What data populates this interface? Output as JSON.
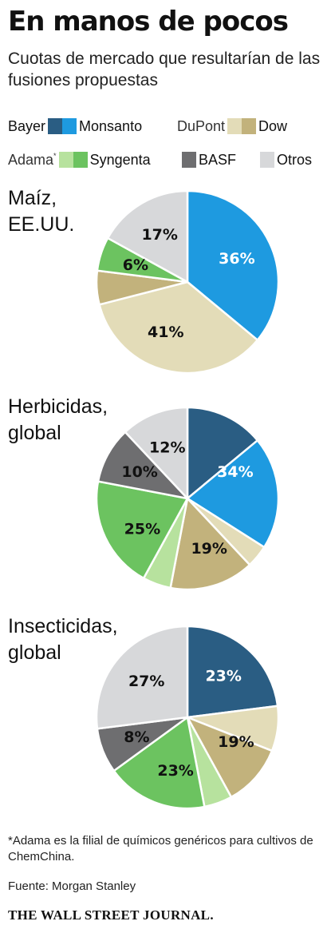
{
  "header": {
    "title": "En manos de pocos",
    "subtitle": "Cuotas de mercado que resultarían de las fusiones propuestas"
  },
  "legend": {
    "row1": [
      {
        "pre": "Bayer",
        "label": "Monsanto",
        "pre_color": "#2a5d83",
        "color": "#1e9ae0"
      },
      {
        "pre": "DuPont",
        "label": "Dow",
        "pre_color": "#e3dcb8",
        "color": "#c2b27c"
      }
    ],
    "row2": [
      {
        "pre": "Adama",
        "pre_mark": "*",
        "label": "Syngenta",
        "pre_color": "#b7e29e",
        "color": "#6cc360"
      },
      {
        "label": "BASF",
        "color": "#6e6e70"
      },
      {
        "label": "Otros",
        "color": "#d7d8da"
      }
    ]
  },
  "chart_data": [
    {
      "type": "pie",
      "title": "Maíz, EE.UU.",
      "title_lines": [
        "Maíz,",
        "EE.UU."
      ],
      "slices": [
        {
          "value": 36,
          "label": "36%",
          "color": "#1e9ae0",
          "label_color": "#ffffff"
        },
        {
          "value": 35,
          "color": "#e3dcb8"
        },
        {
          "value": 6,
          "color": "#c2b27c"
        },
        {
          "value": 6,
          "label": "6%",
          "color": "#6cc360",
          "label_color": "#111111"
        },
        {
          "value": 17,
          "label": "17%",
          "color": "#d7d8da",
          "label_color": "#111111"
        }
      ],
      "group_labels": [
        {
          "text": "41%",
          "slices": [
            1,
            2
          ],
          "color": "#111111"
        }
      ]
    },
    {
      "type": "pie",
      "title": "Herbicidas, global",
      "title_lines": [
        "Herbicidas,",
        "global"
      ],
      "slices": [
        {
          "value": 14,
          "color": "#2a5d83"
        },
        {
          "value": 20,
          "color": "#1e9ae0"
        },
        {
          "value": 4,
          "color": "#e3dcb8"
        },
        {
          "value": 15,
          "color": "#c2b27c"
        },
        {
          "value": 5,
          "color": "#b7e29e"
        },
        {
          "value": 20,
          "color": "#6cc360"
        },
        {
          "value": 10,
          "label": "10%",
          "color": "#6e6e70",
          "label_color": "#111111"
        },
        {
          "value": 12,
          "label": "12%",
          "color": "#d7d8da",
          "label_color": "#111111"
        }
      ],
      "group_labels": [
        {
          "text": "34%",
          "slices": [
            0,
            1
          ],
          "color": "#ffffff"
        },
        {
          "text": "19%",
          "slices": [
            2,
            3
          ],
          "color": "#111111"
        },
        {
          "text": "25%",
          "slices": [
            4,
            5
          ],
          "color": "#111111"
        }
      ]
    },
    {
      "type": "pie",
      "title": "Insecticidas, global",
      "title_lines": [
        "Insecticidas,",
        "global"
      ],
      "slices": [
        {
          "value": 23,
          "label": "23%",
          "color": "#2a5d83",
          "label_color": "#ffffff"
        },
        {
          "value": 8,
          "color": "#e3dcb8"
        },
        {
          "value": 11,
          "color": "#c2b27c"
        },
        {
          "value": 5,
          "color": "#b7e29e"
        },
        {
          "value": 18,
          "color": "#6cc360"
        },
        {
          "value": 8,
          "label": "8%",
          "color": "#6e6e70",
          "label_color": "#111111"
        },
        {
          "value": 27,
          "label": "27%",
          "color": "#d7d8da",
          "label_color": "#111111"
        }
      ],
      "group_labels": [
        {
          "text": "19%",
          "slices": [
            1,
            2
          ],
          "color": "#111111"
        },
        {
          "text": "23%",
          "slices": [
            3,
            4
          ],
          "color": "#111111"
        }
      ]
    }
  ],
  "footer": {
    "footnote": "*Adama es la filial de químicos genéricos para cultivos de ChemChina.",
    "source": "Fuente: Morgan Stanley",
    "brand": "THE WALL STREET JOURNAL."
  }
}
